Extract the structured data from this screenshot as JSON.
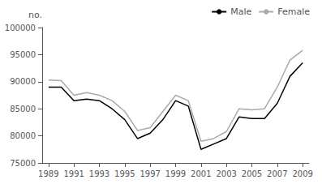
{
  "chart_data": {
    "type": "line",
    "x": [
      1989,
      1990,
      1991,
      1992,
      1993,
      1994,
      1995,
      1996,
      1997,
      1998,
      1999,
      2000,
      2001,
      2002,
      2003,
      2004,
      2005,
      2006,
      2007,
      2008,
      2009
    ],
    "series": [
      {
        "name": "Female",
        "color": "#aaaaaa",
        "values": [
          90300,
          90200,
          87500,
          88000,
          87500,
          86500,
          84500,
          81000,
          81500,
          84500,
          87500,
          86500,
          79000,
          79500,
          80800,
          85000,
          84800,
          85000,
          89000,
          94000,
          95800
        ]
      },
      {
        "name": "Male",
        "color": "#000000",
        "values": [
          89000,
          89000,
          86500,
          86800,
          86500,
          85000,
          83000,
          79500,
          80500,
          83000,
          86500,
          85500,
          77500,
          78500,
          79500,
          83500,
          83200,
          83200,
          86000,
          91000,
          93500
        ]
      }
    ],
    "ylabel": "no.",
    "xlim": [
      1988.5,
      2009.5
    ],
    "xticks": [
      1989,
      1991,
      1993,
      1995,
      1997,
      1999,
      2001,
      2003,
      2005,
      2007,
      2009
    ],
    "ylim": [
      75000,
      100000
    ],
    "yticks": [
      75000,
      80000,
      85000,
      90000,
      95000,
      100000
    ],
    "grid": false,
    "legend": "upper right"
  }
}
